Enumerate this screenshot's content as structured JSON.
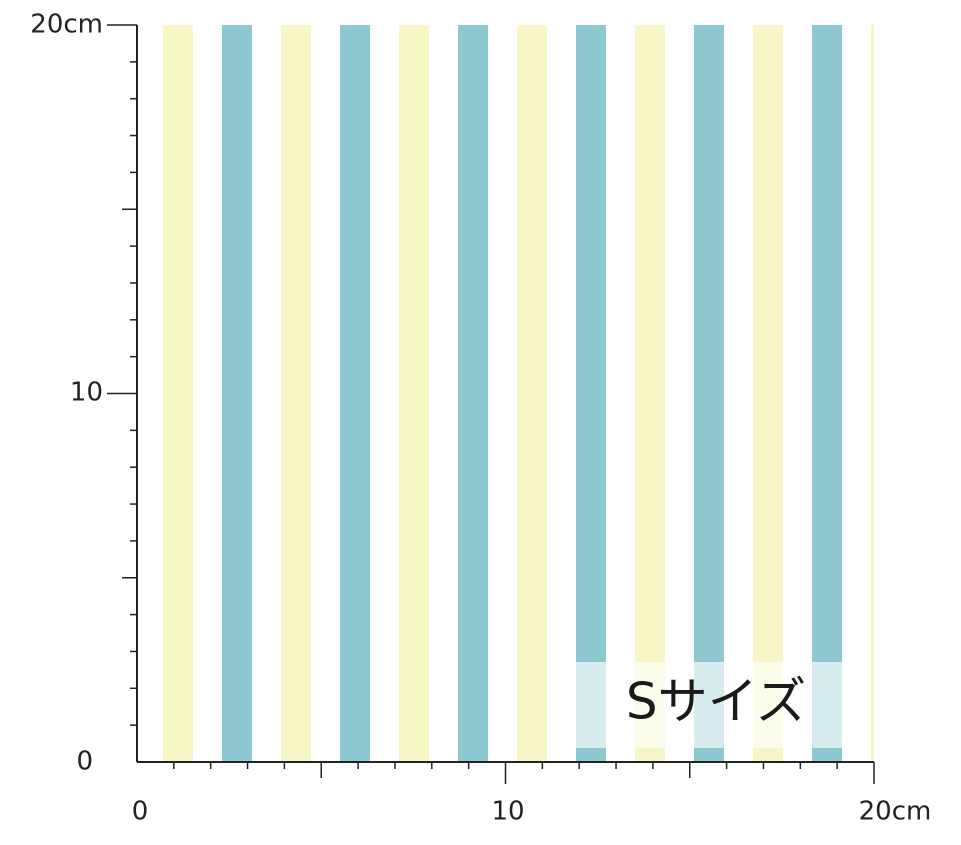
{
  "ruler": {
    "y_labels": [
      "20cm",
      "10",
      "0"
    ],
    "x_labels": [
      "0",
      "10",
      "20cm"
    ]
  },
  "size_label": "Sサイズ"
}
